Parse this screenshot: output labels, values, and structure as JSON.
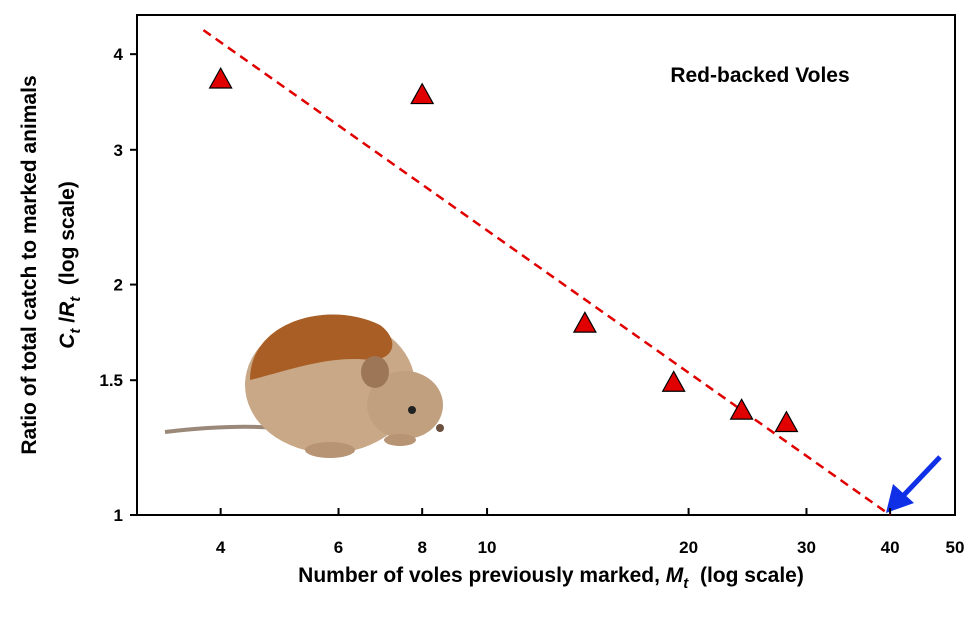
{
  "chart_data": {
    "type": "scatter",
    "annotation": "Red-backed Voles",
    "xlabel": [
      "Number of voles previously marked, ",
      "M",
      "t",
      "  (log scale)"
    ],
    "ylabel": [
      "Ratio of total catch to marked animals",
      "C",
      "t",
      " /",
      "R",
      "t",
      "  (log scale)"
    ],
    "x": [
      4,
      8,
      14,
      19,
      24,
      28
    ],
    "values": [
      3.71,
      3.54,
      1.78,
      1.49,
      1.37,
      1.32
    ],
    "color": "#e00000",
    "fit": {
      "x": [
        3.77,
        40
      ],
      "y": [
        4.3,
        1
      ],
      "color": "#e00000"
    },
    "xlim": [
      3,
      50
    ],
    "xticks": [
      4,
      6,
      8,
      10,
      20,
      30,
      40,
      50
    ],
    "xscale": "log",
    "ylim": [
      1,
      4.5
    ],
    "yticks": [
      1,
      1.5,
      2,
      3,
      4
    ],
    "yscale": "log"
  }
}
